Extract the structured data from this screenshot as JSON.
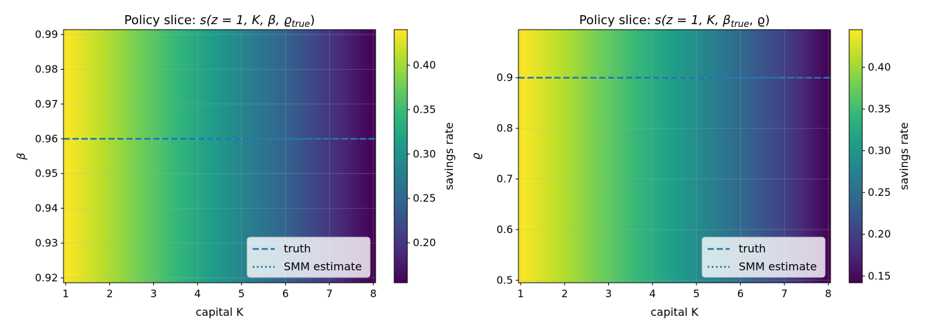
{
  "chart_data": [
    {
      "type": "heatmap",
      "title_prefix": "Policy slice: ",
      "title_math": "s(z = 1, K, β, ϱ",
      "title_sub": "true",
      "title_suffix": ")",
      "xlabel": "capital K",
      "ylabel": "β",
      "colorbar_label": "savings rate",
      "xlim": [
        0.95,
        8.05
      ],
      "ylim": [
        0.9186,
        0.9914
      ],
      "x_ticks": [
        1,
        2,
        3,
        4,
        5,
        6,
        7,
        8
      ],
      "y_ticks": [
        0.92,
        0.93,
        0.94,
        0.95,
        0.96,
        0.97,
        0.98,
        0.99
      ],
      "y_tick_labels": [
        "0.92",
        "0.93",
        "0.94",
        "0.95",
        "0.96",
        "0.97",
        "0.98",
        "0.99"
      ],
      "colorbar_range": [
        0.155,
        0.44
      ],
      "colorbar_ticks": [
        0.2,
        0.25,
        0.3,
        0.35,
        0.4
      ],
      "colorbar_tick_labels": [
        "0.20",
        "0.25",
        "0.30",
        "0.35",
        "0.40"
      ],
      "z_values_along_K": {
        "K": [
          1,
          2,
          3,
          4,
          5,
          6,
          7,
          8
        ],
        "savings": [
          0.44,
          0.405,
          0.365,
          0.325,
          0.285,
          0.245,
          0.2,
          0.155
        ]
      },
      "truth_line": 0.96,
      "legend": [
        "truth",
        "SMM estimate"
      ],
      "legend_position": "lower-right",
      "grid": true
    },
    {
      "type": "heatmap",
      "title_prefix": "Policy slice: ",
      "title_math": "s(z = 1, K, β",
      "title_sub": "true",
      "title_suffix": ", ϱ)",
      "xlabel": "capital K",
      "ylabel": "ϱ",
      "colorbar_label": "savings rate",
      "xlim": [
        0.95,
        8.05
      ],
      "ylim": [
        0.495,
        0.995
      ],
      "x_ticks": [
        1,
        2,
        3,
        4,
        5,
        6,
        7,
        8
      ],
      "y_ticks": [
        0.5,
        0.6,
        0.7,
        0.8,
        0.9
      ],
      "y_tick_labels": [
        "0.5",
        "0.6",
        "0.7",
        "0.8",
        "0.9"
      ],
      "colorbar_range": [
        0.142,
        0.445
      ],
      "colorbar_ticks": [
        0.15,
        0.2,
        0.25,
        0.3,
        0.35,
        0.4
      ],
      "colorbar_tick_labels": [
        "0.15",
        "0.20",
        "0.25",
        "0.30",
        "0.35",
        "0.40"
      ],
      "z_values_along_K": {
        "K": [
          1,
          2,
          3,
          4,
          5,
          6,
          7,
          8
        ],
        "savings": [
          0.445,
          0.41,
          0.37,
          0.33,
          0.29,
          0.245,
          0.2,
          0.142
        ]
      },
      "truth_line": 0.9,
      "legend": [
        "truth",
        "SMM estimate"
      ],
      "legend_position": "lower-right",
      "grid": true
    }
  ],
  "colors": {
    "line": "#1f77b4",
    "viridis": [
      "#440154",
      "#482878",
      "#3e4989",
      "#31688e",
      "#26828e",
      "#1f9e89",
      "#35b779",
      "#6ece58",
      "#b5de2b",
      "#fde725"
    ]
  }
}
